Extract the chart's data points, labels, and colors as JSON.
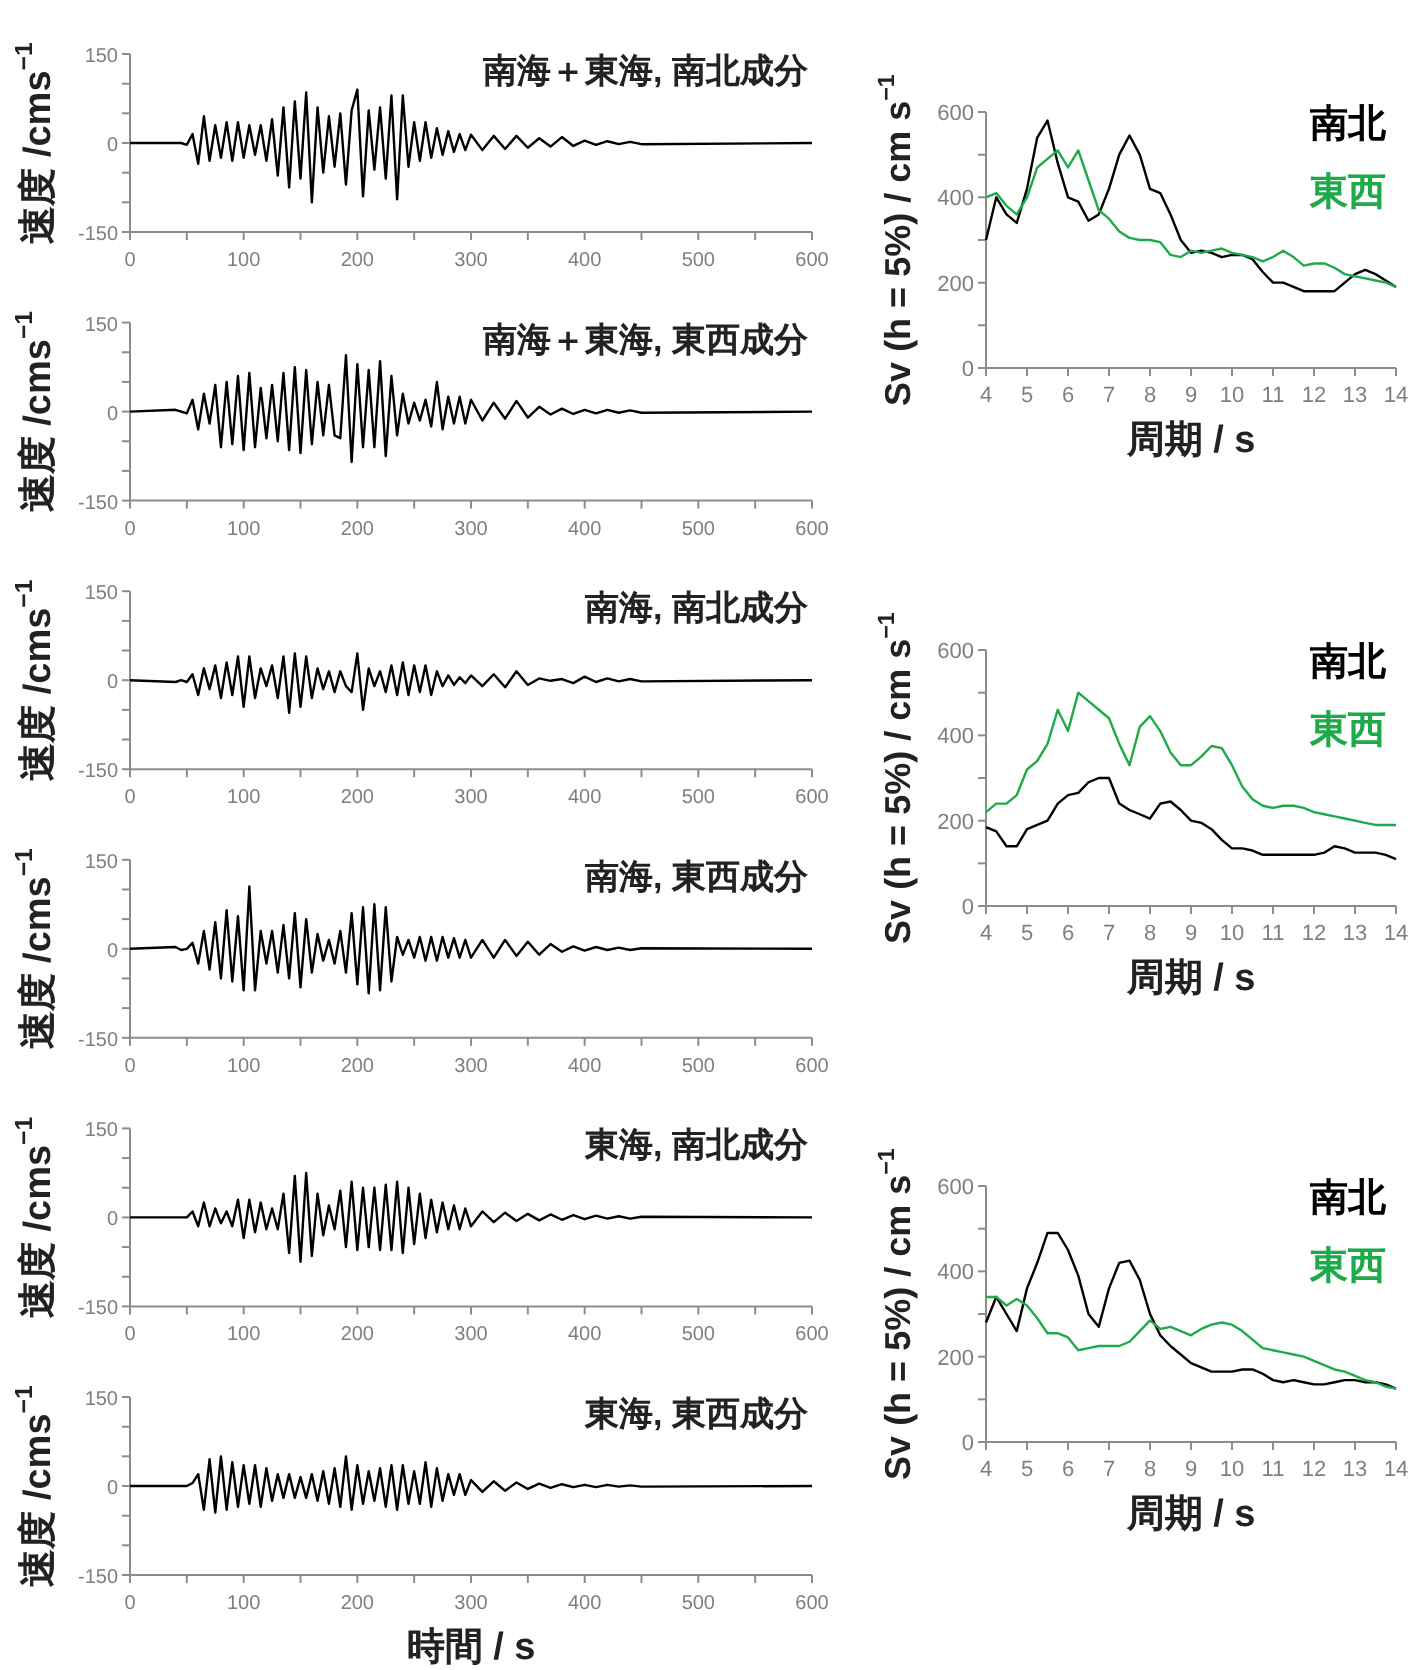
{
  "chart_data": [
    {
      "type": "line",
      "title": "南海＋東海, 南北成分",
      "ylabel": "速度 /cms$^{−1}$",
      "xlim": [
        0,
        600
      ],
      "ylim": [
        -150,
        150
      ],
      "xticks": [
        0,
        {
          "value": 50,
          "label": null
        },
        100,
        {
          "value": 150,
          "label": null
        },
        200,
        {
          "value": 250,
          "label": null
        },
        300,
        {
          "value": 350,
          "label": null
        },
        400,
        {
          "value": 450,
          "label": null
        },
        500,
        {
          "value": 550,
          "label": null
        },
        600
      ],
      "yticks": [
        -150,
        {
          "value": -100,
          "label": null
        },
        {
          "value": -50,
          "label": null
        },
        0,
        {
          "value": 50,
          "label": null
        },
        {
          "value": 100,
          "label": null
        },
        150
      ],
      "grid": false,
      "legend": false,
      "x": [
        0,
        40,
        45,
        50,
        55,
        60,
        65,
        70,
        75,
        80,
        85,
        90,
        95,
        100,
        105,
        110,
        115,
        120,
        125,
        130,
        135,
        140,
        145,
        150,
        155,
        160,
        165,
        170,
        175,
        180,
        185,
        190,
        195,
        200,
        205,
        210,
        215,
        220,
        225,
        230,
        235,
        240,
        245,
        250,
        255,
        260,
        265,
        270,
        275,
        280,
        285,
        290,
        295,
        300,
        310,
        320,
        330,
        340,
        350,
        360,
        370,
        380,
        390,
        400,
        410,
        420,
        430,
        440,
        450,
        600
      ],
      "series": [
        {
          "color": "#000000",
          "values": [
            0,
            0,
            0,
            -3,
            15,
            -35,
            45,
            -30,
            30,
            -25,
            35,
            -30,
            35,
            -25,
            30,
            -20,
            30,
            -30,
            40,
            -55,
            60,
            -75,
            70,
            -60,
            85,
            -100,
            60,
            -50,
            45,
            -40,
            50,
            -70,
            55,
            90,
            -90,
            55,
            -45,
            60,
            -60,
            80,
            -95,
            80,
            -40,
            35,
            -30,
            35,
            -25,
            25,
            -20,
            20,
            -15,
            15,
            -12,
            14,
            -12,
            12,
            -10,
            12,
            -8,
            8,
            -6,
            10,
            -5,
            4,
            -3,
            3,
            -2,
            2,
            -2,
            0
          ]
        }
      ]
    },
    {
      "type": "line",
      "title": "南海＋東海, 東西成分",
      "ylabel": "速度 /cms$^{−1}$",
      "xlim": [
        0,
        600
      ],
      "ylim": [
        -150,
        150
      ],
      "xticks": [
        0,
        {
          "value": 50,
          "label": null
        },
        100,
        {
          "value": 150,
          "label": null
        },
        200,
        {
          "value": 250,
          "label": null
        },
        300,
        {
          "value": 350,
          "label": null
        },
        400,
        {
          "value": 450,
          "label": null
        },
        500,
        {
          "value": 550,
          "label": null
        },
        600
      ],
      "yticks": [
        -150,
        {
          "value": -100,
          "label": null
        },
        {
          "value": -50,
          "label": null
        },
        0,
        {
          "value": 50,
          "label": null
        },
        {
          "value": 100,
          "label": null
        },
        150
      ],
      "grid": false,
      "legend": false,
      "x": [
        0,
        40,
        45,
        50,
        55,
        60,
        65,
        70,
        75,
        80,
        85,
        90,
        95,
        100,
        105,
        110,
        115,
        120,
        125,
        130,
        135,
        140,
        145,
        150,
        155,
        160,
        165,
        170,
        175,
        180,
        185,
        190,
        195,
        200,
        205,
        210,
        215,
        220,
        225,
        230,
        235,
        240,
        245,
        250,
        255,
        260,
        265,
        270,
        275,
        280,
        285,
        290,
        295,
        300,
        310,
        320,
        330,
        340,
        350,
        360,
        370,
        380,
        390,
        400,
        410,
        420,
        430,
        440,
        450,
        600
      ],
      "series": [
        {
          "color": "#000000",
          "values": [
            0,
            3,
            0,
            -3,
            20,
            -30,
            30,
            -20,
            45,
            -60,
            50,
            -55,
            60,
            -65,
            65,
            -60,
            40,
            -45,
            45,
            -50,
            65,
            -65,
            75,
            -70,
            70,
            -55,
            50,
            -40,
            45,
            -40,
            -45,
            95,
            -85,
            80,
            -60,
            70,
            -60,
            85,
            -75,
            60,
            -40,
            30,
            -20,
            15,
            -15,
            20,
            -25,
            50,
            -30,
            25,
            -20,
            25,
            -20,
            20,
            -15,
            15,
            -12,
            18,
            -10,
            8,
            -5,
            5,
            -4,
            3,
            -3,
            3,
            -2,
            2,
            -2,
            0
          ]
        }
      ]
    },
    {
      "type": "line",
      "title": "南海, 南北成分",
      "ylabel": "速度 /cms$^{−1}$",
      "xlim": [
        0,
        600
      ],
      "ylim": [
        -150,
        150
      ],
      "xticks": [
        0,
        {
          "value": 50,
          "label": null
        },
        100,
        {
          "value": 150,
          "label": null
        },
        200,
        {
          "value": 250,
          "label": null
        },
        300,
        {
          "value": 350,
          "label": null
        },
        400,
        {
          "value": 450,
          "label": null
        },
        500,
        {
          "value": 550,
          "label": null
        },
        600
      ],
      "yticks": [
        -150,
        {
          "value": -100,
          "label": null
        },
        {
          "value": -50,
          "label": null
        },
        0,
        {
          "value": 50,
          "label": null
        },
        {
          "value": 100,
          "label": null
        },
        150
      ],
      "grid": false,
      "legend": false,
      "x": [
        0,
        40,
        45,
        50,
        55,
        60,
        65,
        70,
        75,
        80,
        85,
        90,
        95,
        100,
        105,
        110,
        115,
        120,
        125,
        130,
        135,
        140,
        145,
        150,
        155,
        160,
        165,
        170,
        175,
        180,
        185,
        190,
        195,
        200,
        205,
        210,
        215,
        220,
        225,
        230,
        235,
        240,
        245,
        250,
        255,
        260,
        265,
        270,
        275,
        280,
        285,
        290,
        295,
        300,
        310,
        320,
        330,
        340,
        350,
        360,
        370,
        380,
        390,
        400,
        410,
        420,
        430,
        440,
        450,
        600
      ],
      "series": [
        {
          "color": "#000000",
          "values": [
            0,
            -3,
            0,
            -3,
            10,
            -25,
            20,
            -15,
            25,
            -30,
            30,
            -25,
            40,
            -45,
            40,
            -30,
            20,
            -10,
            25,
            -30,
            40,
            -55,
            45,
            -45,
            40,
            -30,
            20,
            -15,
            15,
            -20,
            15,
            -10,
            -20,
            45,
            -50,
            20,
            -10,
            15,
            -20,
            25,
            -25,
            30,
            -25,
            25,
            -20,
            25,
            -25,
            15,
            -10,
            8,
            -8,
            5,
            -5,
            8,
            -10,
            10,
            -12,
            15,
            -8,
            3,
            -1,
            2,
            -5,
            6,
            -3,
            3,
            -2,
            2,
            -2,
            0
          ]
        }
      ]
    },
    {
      "type": "line",
      "title": "南海, 東西成分",
      "ylabel": "速度 /cms$^{−1}$",
      "xlim": [
        0,
        600
      ],
      "ylim": [
        -150,
        150
      ],
      "xticks": [
        0,
        {
          "value": 50,
          "label": null
        },
        100,
        {
          "value": 150,
          "label": null
        },
        200,
        {
          "value": 250,
          "label": null
        },
        300,
        {
          "value": 350,
          "label": null
        },
        400,
        {
          "value": 450,
          "label": null
        },
        500,
        {
          "value": 550,
          "label": null
        },
        600
      ],
      "yticks": [
        -150,
        {
          "value": -100,
          "label": null
        },
        {
          "value": -50,
          "label": null
        },
        0,
        {
          "value": 50,
          "label": null
        },
        {
          "value": 100,
          "label": null
        },
        150
      ],
      "grid": false,
      "legend": false,
      "x": [
        0,
        40,
        45,
        50,
        55,
        60,
        65,
        70,
        75,
        80,
        85,
        90,
        95,
        100,
        105,
        110,
        115,
        120,
        125,
        130,
        135,
        140,
        145,
        150,
        155,
        160,
        165,
        170,
        175,
        180,
        185,
        190,
        195,
        200,
        205,
        210,
        215,
        220,
        225,
        230,
        235,
        240,
        245,
        250,
        255,
        260,
        265,
        270,
        275,
        280,
        285,
        290,
        295,
        300,
        310,
        320,
        330,
        340,
        350,
        360,
        370,
        380,
        390,
        400,
        410,
        420,
        430,
        440,
        450,
        600
      ],
      "series": [
        {
          "color": "#000000",
          "values": [
            0,
            3,
            -2,
            0,
            10,
            -25,
            30,
            -35,
            45,
            -50,
            65,
            -55,
            55,
            -70,
            105,
            -70,
            30,
            -25,
            30,
            -40,
            40,
            -50,
            60,
            -65,
            50,
            -40,
            25,
            -20,
            15,
            -25,
            30,
            -40,
            60,
            -60,
            70,
            -75,
            75,
            -70,
            70,
            -55,
            20,
            -10,
            15,
            -15,
            20,
            -20,
            20,
            -20,
            20,
            -15,
            18,
            -15,
            15,
            -15,
            15,
            -15,
            15,
            -12,
            12,
            -10,
            8,
            -5,
            4,
            -3,
            3,
            -2,
            2,
            -2,
            1,
            0
          ]
        }
      ]
    },
    {
      "type": "line",
      "title": "東海, 南北成分",
      "ylabel": "速度 /cms$^{−1}$",
      "xlim": [
        0,
        600
      ],
      "ylim": [
        -150,
        150
      ],
      "xticks": [
        0,
        {
          "value": 50,
          "label": null
        },
        100,
        {
          "value": 150,
          "label": null
        },
        200,
        {
          "value": 250,
          "label": null
        },
        300,
        {
          "value": 350,
          "label": null
        },
        400,
        {
          "value": 450,
          "label": null
        },
        500,
        {
          "value": 550,
          "label": null
        },
        600
      ],
      "yticks": [
        -150,
        {
          "value": -100,
          "label": null
        },
        {
          "value": -50,
          "label": null
        },
        0,
        {
          "value": 50,
          "label": null
        },
        {
          "value": 100,
          "label": null
        },
        150
      ],
      "grid": false,
      "legend": false,
      "x": [
        0,
        40,
        45,
        50,
        55,
        60,
        65,
        70,
        75,
        80,
        85,
        90,
        95,
        100,
        105,
        110,
        115,
        120,
        125,
        130,
        135,
        140,
        145,
        150,
        155,
        160,
        165,
        170,
        175,
        180,
        185,
        190,
        195,
        200,
        205,
        210,
        215,
        220,
        225,
        230,
        235,
        240,
        245,
        250,
        255,
        260,
        265,
        270,
        275,
        280,
        285,
        290,
        295,
        300,
        310,
        320,
        330,
        340,
        350,
        360,
        370,
        380,
        390,
        400,
        410,
        420,
        430,
        440,
        450,
        600
      ],
      "series": [
        {
          "color": "#000000",
          "values": [
            0,
            0,
            0,
            0,
            10,
            -15,
            25,
            -15,
            15,
            -10,
            10,
            -15,
            30,
            -35,
            30,
            -25,
            25,
            -20,
            15,
            -20,
            40,
            -60,
            70,
            -75,
            75,
            -65,
            40,
            -30,
            20,
            -20,
            45,
            -50,
            60,
            -55,
            50,
            -50,
            50,
            -55,
            55,
            -55,
            60,
            -60,
            50,
            -45,
            40,
            -35,
            30,
            -25,
            25,
            -20,
            20,
            -20,
            15,
            -15,
            10,
            -8,
            8,
            -6,
            6,
            -5,
            5,
            -4,
            4,
            -3,
            3,
            -2,
            2,
            -2,
            1,
            0
          ]
        }
      ]
    },
    {
      "type": "line",
      "title": "東海, 東西成分",
      "ylabel": "速度 /cms$^{−1}$",
      "xlabel": "時間 / s",
      "xlim": [
        0,
        600
      ],
      "ylim": [
        -150,
        150
      ],
      "xticks": [
        0,
        {
          "value": 50,
          "label": null
        },
        100,
        {
          "value": 150,
          "label": null
        },
        200,
        {
          "value": 250,
          "label": null
        },
        300,
        {
          "value": 350,
          "label": null
        },
        400,
        {
          "value": 450,
          "label": null
        },
        500,
        {
          "value": 550,
          "label": null
        },
        600
      ],
      "yticks": [
        -150,
        {
          "value": -100,
          "label": null
        },
        {
          "value": -50,
          "label": null
        },
        0,
        {
          "value": 50,
          "label": null
        },
        {
          "value": 100,
          "label": null
        },
        150
      ],
      "grid": false,
      "legend": false,
      "x": [
        0,
        40,
        45,
        50,
        55,
        60,
        65,
        70,
        75,
        80,
        85,
        90,
        95,
        100,
        105,
        110,
        115,
        120,
        125,
        130,
        135,
        140,
        145,
        150,
        155,
        160,
        165,
        170,
        175,
        180,
        185,
        190,
        195,
        200,
        205,
        210,
        215,
        220,
        225,
        230,
        235,
        240,
        245,
        250,
        255,
        260,
        265,
        270,
        275,
        280,
        285,
        290,
        295,
        300,
        310,
        320,
        330,
        340,
        350,
        360,
        370,
        380,
        390,
        400,
        410,
        420,
        430,
        440,
        450,
        600
      ],
      "series": [
        {
          "color": "#000000",
          "values": [
            0,
            0,
            0,
            0,
            5,
            20,
            -40,
            45,
            -45,
            50,
            -40,
            40,
            -35,
            35,
            -30,
            35,
            -35,
            30,
            -25,
            20,
            -20,
            20,
            -20,
            15,
            -20,
            20,
            -25,
            25,
            -30,
            30,
            -35,
            50,
            -40,
            35,
            -30,
            25,
            -25,
            30,
            -35,
            35,
            -40,
            35,
            -30,
            25,
            -30,
            40,
            -35,
            30,
            -25,
            20,
            -15,
            20,
            -15,
            10,
            -10,
            8,
            -8,
            6,
            -5,
            4,
            -3,
            3,
            -2,
            2,
            -2,
            2,
            -1,
            1,
            -1,
            0
          ]
        }
      ]
    },
    {
      "type": "line",
      "ylabel": "Sv (h = 5%) / cm s$^{−1}$",
      "xlabel": "周期 / s",
      "xlim": [
        4,
        14
      ],
      "ylim": [
        0,
        600
      ],
      "xticks": [
        4,
        5,
        6,
        7,
        8,
        9,
        10,
        11,
        12,
        13,
        14
      ],
      "yticks": [
        0,
        {
          "value": 100,
          "label": null
        },
        200,
        {
          "value": 300,
          "label": null
        },
        400,
        {
          "value": 500,
          "label": null
        },
        600
      ],
      "grid": false,
      "legend": "top right",
      "x": [
        4,
        4.25,
        4.5,
        4.75,
        5,
        5.25,
        5.5,
        5.75,
        6,
        6.25,
        6.5,
        6.75,
        7,
        7.25,
        7.5,
        7.75,
        8,
        8.25,
        8.5,
        8.75,
        9,
        9.25,
        9.5,
        9.75,
        10,
        10.25,
        10.5,
        10.75,
        11,
        11.25,
        11.5,
        11.75,
        12,
        12.25,
        12.5,
        12.75,
        13,
        13.25,
        13.5,
        13.75,
        14
      ],
      "series": [
        {
          "name": "南北",
          "color": "#000000",
          "values": [
            300,
            400,
            360,
            340,
            420,
            540,
            580,
            480,
            400,
            390,
            345,
            360,
            420,
            500,
            545,
            500,
            420,
            410,
            360,
            300,
            270,
            275,
            270,
            260,
            265,
            265,
            255,
            225,
            200,
            200,
            190,
            180,
            180,
            180,
            180,
            200,
            220,
            230,
            220,
            205,
            190
          ]
        },
        {
          "name": "東西",
          "color": "#1faa4a",
          "values": [
            400,
            410,
            380,
            360,
            400,
            470,
            490,
            510,
            470,
            510,
            440,
            370,
            350,
            320,
            305,
            300,
            300,
            295,
            265,
            260,
            275,
            270,
            275,
            280,
            270,
            265,
            260,
            250,
            260,
            275,
            260,
            240,
            245,
            245,
            235,
            220,
            215,
            210,
            205,
            200,
            190
          ]
        }
      ]
    },
    {
      "type": "line",
      "ylabel": "Sv (h = 5%) / cm s$^{−1}$",
      "xlabel": "周期 / s",
      "xlim": [
        4,
        14
      ],
      "ylim": [
        0,
        600
      ],
      "xticks": [
        4,
        5,
        6,
        7,
        8,
        9,
        10,
        11,
        12,
        13,
        14
      ],
      "yticks": [
        0,
        {
          "value": 100,
          "label": null
        },
        200,
        {
          "value": 300,
          "label": null
        },
        400,
        {
          "value": 500,
          "label": null
        },
        600
      ],
      "grid": false,
      "legend": "top right",
      "x": [
        4,
        4.25,
        4.5,
        4.75,
        5,
        5.25,
        5.5,
        5.75,
        6,
        6.25,
        6.5,
        6.75,
        7,
        7.25,
        7.5,
        7.75,
        8,
        8.25,
        8.5,
        8.75,
        9,
        9.25,
        9.5,
        9.75,
        10,
        10.25,
        10.5,
        10.75,
        11,
        11.25,
        11.5,
        11.75,
        12,
        12.25,
        12.5,
        12.75,
        13,
        13.25,
        13.5,
        13.75,
        14
      ],
      "series": [
        {
          "name": "南北",
          "color": "#000000",
          "values": [
            185,
            175,
            140,
            140,
            180,
            190,
            200,
            240,
            260,
            265,
            290,
            300,
            300,
            240,
            225,
            215,
            205,
            240,
            245,
            225,
            200,
            195,
            180,
            155,
            135,
            135,
            130,
            120,
            120,
            120,
            120,
            120,
            120,
            125,
            140,
            135,
            125,
            125,
            125,
            120,
            110
          ]
        },
        {
          "name": "東西",
          "color": "#1faa4a",
          "values": [
            220,
            240,
            240,
            260,
            320,
            340,
            380,
            460,
            410,
            500,
            480,
            460,
            440,
            380,
            330,
            420,
            445,
            410,
            360,
            330,
            330,
            350,
            375,
            370,
            330,
            280,
            250,
            235,
            230,
            235,
            235,
            230,
            220,
            215,
            210,
            205,
            200,
            195,
            190,
            190,
            190
          ]
        }
      ]
    },
    {
      "type": "line",
      "ylabel": "Sv (h = 5%) / cm s$^{−1}$",
      "xlabel": "周期 / s",
      "xlim": [
        4,
        14
      ],
      "ylim": [
        0,
        600
      ],
      "xticks": [
        4,
        5,
        6,
        7,
        8,
        9,
        10,
        11,
        12,
        13,
        14
      ],
      "yticks": [
        0,
        {
          "value": 100,
          "label": null
        },
        200,
        {
          "value": 300,
          "label": null
        },
        400,
        {
          "value": 500,
          "label": null
        },
        600
      ],
      "grid": false,
      "legend": "top right",
      "x": [
        4,
        4.25,
        4.5,
        4.75,
        5,
        5.25,
        5.5,
        5.75,
        6,
        6.25,
        6.5,
        6.75,
        7,
        7.25,
        7.5,
        7.75,
        8,
        8.25,
        8.5,
        8.75,
        9,
        9.25,
        9.5,
        9.75,
        10,
        10.25,
        10.5,
        10.75,
        11,
        11.25,
        11.5,
        11.75,
        12,
        12.25,
        12.5,
        12.75,
        13,
        13.25,
        13.5,
        13.75,
        14
      ],
      "series": [
        {
          "name": "南北",
          "color": "#000000",
          "values": [
            280,
            340,
            300,
            260,
            360,
            420,
            490,
            490,
            450,
            390,
            300,
            270,
            360,
            420,
            425,
            380,
            300,
            250,
            225,
            205,
            185,
            175,
            165,
            165,
            165,
            170,
            170,
            160,
            145,
            140,
            145,
            140,
            135,
            135,
            140,
            145,
            145,
            140,
            140,
            135,
            125
          ]
        },
        {
          "name": "東西",
          "color": "#1faa4a",
          "values": [
            340,
            340,
            320,
            335,
            320,
            290,
            255,
            255,
            245,
            215,
            220,
            225,
            225,
            225,
            235,
            260,
            285,
            265,
            270,
            260,
            250,
            265,
            275,
            280,
            275,
            260,
            240,
            220,
            215,
            210,
            205,
            200,
            190,
            180,
            170,
            165,
            155,
            145,
            140,
            130,
            125
          ]
        }
      ]
    }
  ]
}
